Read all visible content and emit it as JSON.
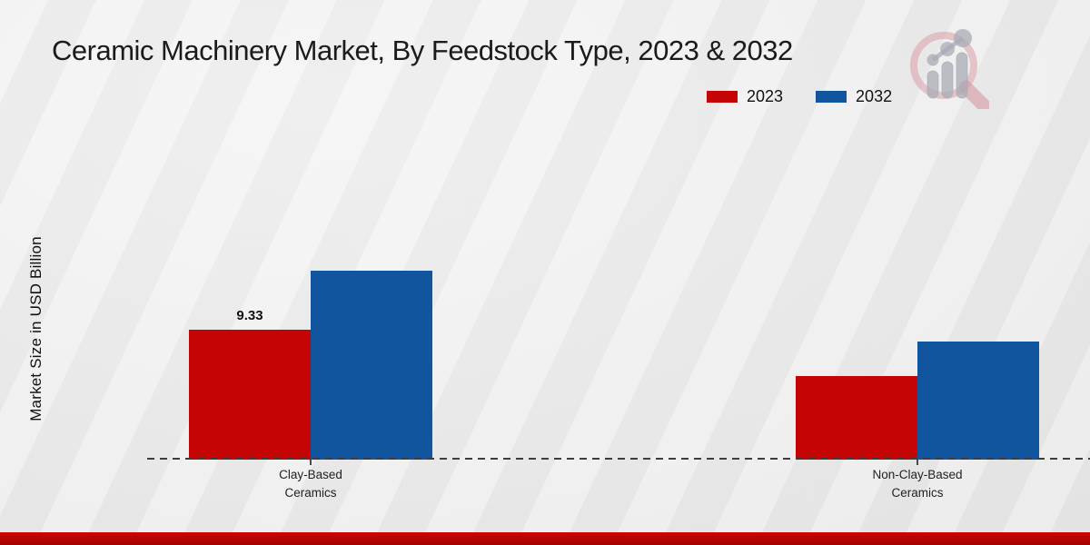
{
  "title": "Ceramic Machinery Market, By Feedstock Type, 2023 & 2032",
  "ylabel": "Market Size in USD Billion",
  "legend": [
    {
      "label": "2023",
      "color": "#c50505"
    },
    {
      "label": "2032",
      "color": "#11559f"
    }
  ],
  "chart_data": {
    "type": "bar",
    "title": "Ceramic Machinery Market, By Feedstock Type, 2023 & 2032",
    "xlabel": "",
    "ylabel": "Market Size in USD Billion",
    "categories": [
      "Clay-Based Ceramics",
      "Non-Clay-Based Ceramics"
    ],
    "category_lines": [
      [
        "Clay-Based",
        "Ceramics"
      ],
      [
        "Non-Clay-Based",
        "Ceramics"
      ]
    ],
    "series": [
      {
        "name": "2023",
        "color": "#c50505",
        "values": [
          9.33,
          6.0
        ]
      },
      {
        "name": "2032",
        "color": "#11559f",
        "values": [
          13.6,
          8.45
        ]
      }
    ],
    "data_labels": [
      {
        "series": "2023",
        "category": "Clay-Based Ceramics",
        "text": "9.33"
      }
    ],
    "ylim": [
      0,
      15
    ],
    "grid": false,
    "y_axis_ticks_visible": false,
    "baseline_style": "dashed",
    "legend_position": "top-right"
  },
  "watermark_name": "magnifier-bar-chart-logo",
  "footer": {
    "bar_color_top": "#cb0404",
    "bar_color_bottom": "#a30202"
  }
}
